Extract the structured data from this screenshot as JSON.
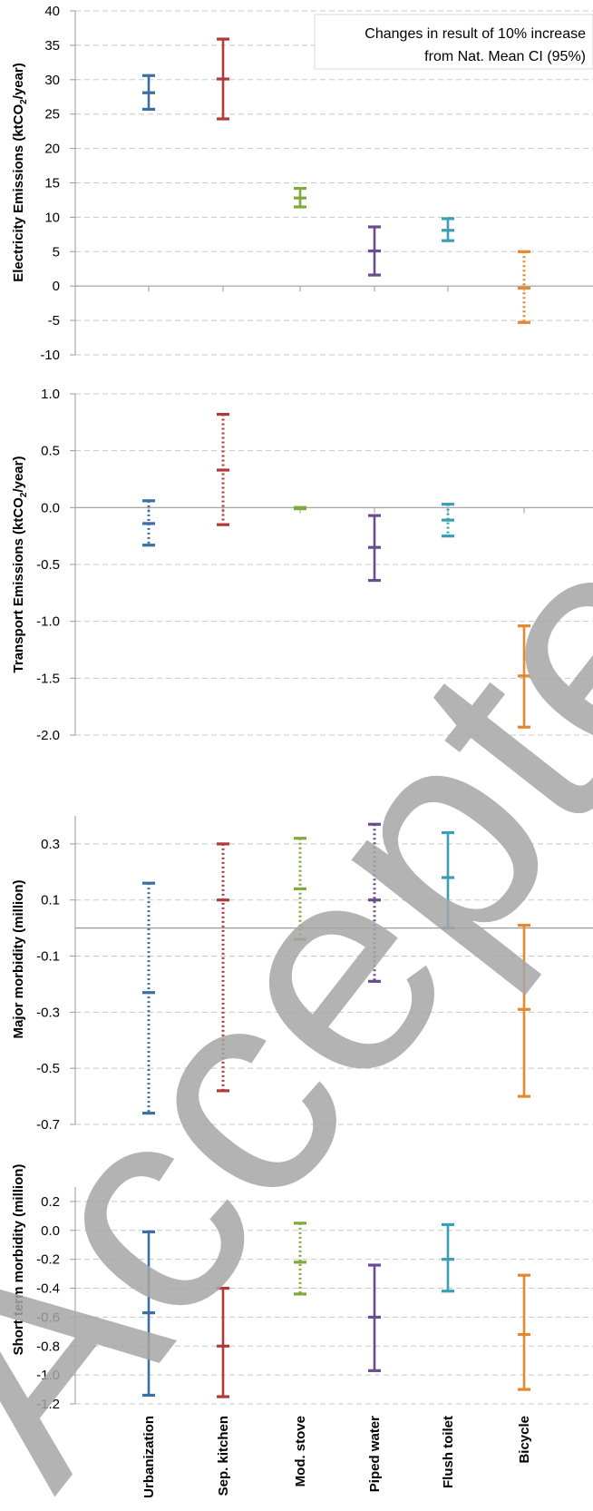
{
  "chart_data": [
    {
      "type": "errorbar",
      "ylabel_pre": "Electricity Emissions (ktCO",
      "ylabel_sub": "2",
      "ylabel_post": "/year)",
      "ylim": [
        -10,
        40
      ],
      "yticks": [
        -10,
        -5,
        0,
        5,
        10,
        15,
        20,
        25,
        30,
        35,
        40
      ],
      "ytick_labels": [
        "-10",
        "-5",
        "0",
        "5",
        "10",
        "15",
        "20",
        "25",
        "30",
        "35",
        "40"
      ],
      "legend": [
        "Changes in result of 10% increase",
        "from Nat. Mean CI (95%)"
      ],
      "points": [
        {
          "low": 25.7,
          "mid": 28.1,
          "high": 30.6,
          "style": "solid"
        },
        {
          "low": 24.3,
          "mid": 30.1,
          "high": 35.9,
          "style": "solid"
        },
        {
          "low": 11.5,
          "mid": 12.8,
          "high": 14.2,
          "style": "solid"
        },
        {
          "low": 1.6,
          "mid": 5.1,
          "high": 8.6,
          "style": "solid"
        },
        {
          "low": 6.6,
          "mid": 8.1,
          "high": 9.8,
          "style": "solid"
        },
        {
          "low": -5.3,
          "mid": -0.3,
          "high": 5.0,
          "style": "dotted"
        }
      ]
    },
    {
      "type": "errorbar",
      "ylabel_pre": "Transport Emissions (ktCO",
      "ylabel_sub": "2",
      "ylabel_post": "/year)",
      "ylim": [
        -2.0,
        1.0
      ],
      "yticks": [
        -2.0,
        -1.5,
        -1.0,
        -0.5,
        0.0,
        0.5,
        1.0
      ],
      "ytick_labels": [
        "-2.0",
        "-1.5",
        "-1.0",
        "-0.5",
        "0.0",
        "0.5",
        "1.0"
      ],
      "points": [
        {
          "low": -0.33,
          "mid": -0.14,
          "high": 0.06,
          "style": "dotted"
        },
        {
          "low": -0.15,
          "mid": 0.33,
          "high": 0.82,
          "style": "dotted"
        },
        {
          "low": -0.01,
          "mid": 0.0,
          "high": 0.0,
          "style": "solid"
        },
        {
          "low": -0.64,
          "mid": -0.35,
          "high": -0.07,
          "style": "solid"
        },
        {
          "low": -0.25,
          "mid": -0.11,
          "high": 0.03,
          "style": "dotted"
        },
        {
          "low": -1.93,
          "mid": -1.48,
          "high": -1.04,
          "style": "solid"
        }
      ]
    },
    {
      "type": "errorbar",
      "ylabel_pre": "Major morbidity (million)",
      "ylim": [
        -0.7,
        0.4
      ],
      "yticks": [
        -0.7,
        -0.5,
        -0.3,
        -0.1,
        0.1,
        0.3
      ],
      "ytick_labels": [
        "-0.7",
        "-0.5",
        "-0.3",
        "-0.1",
        "0.1",
        "0.3"
      ],
      "zero_line": 0.0,
      "points": [
        {
          "low": -0.66,
          "mid": -0.23,
          "high": 0.16,
          "style": "dotted"
        },
        {
          "low": -0.58,
          "mid": 0.1,
          "high": 0.3,
          "style": "dotted"
        },
        {
          "low": -0.04,
          "mid": 0.14,
          "high": 0.32,
          "style": "dotted"
        },
        {
          "low": -0.19,
          "mid": 0.1,
          "high": 0.37,
          "style": "dotted"
        },
        {
          "low": 0.0,
          "mid": 0.18,
          "high": 0.34,
          "style": "solid"
        },
        {
          "low": -0.6,
          "mid": -0.29,
          "high": 0.01,
          "style": "solid"
        }
      ]
    },
    {
      "type": "errorbar",
      "ylabel_pre": "Short term morbidity (million)",
      "ylim": [
        -1.2,
        0.3
      ],
      "yticks": [
        -1.2,
        -1.0,
        -0.8,
        -0.6,
        -0.4,
        -0.2,
        0.0,
        0.2
      ],
      "ytick_labels": [
        "-1.2",
        "-1.0",
        "-0.8",
        "-0.6",
        "-0.4",
        "-0.2",
        "0.0",
        "0.2"
      ],
      "points": [
        {
          "low": -1.14,
          "mid": -0.57,
          "high": -0.01,
          "style": "solid"
        },
        {
          "low": -1.15,
          "mid": -0.8,
          "high": -0.4,
          "style": "solid"
        },
        {
          "low": -0.44,
          "mid": -0.22,
          "high": 0.05,
          "style": "dotted"
        },
        {
          "low": -0.97,
          "mid": -0.6,
          "high": -0.24,
          "style": "solid"
        },
        {
          "low": -0.42,
          "mid": -0.2,
          "high": 0.04,
          "style": "solid"
        },
        {
          "low": -1.1,
          "mid": -0.72,
          "high": -0.31,
          "style": "solid"
        }
      ]
    }
  ],
  "categories": [
    "Urbanization",
    "Sep. kitchen",
    "Mod. stove",
    "Piped water",
    "Flush toilet",
    "Bicycle"
  ],
  "colors": [
    "#3a6ea5",
    "#b03a3a",
    "#7faa3c",
    "#6b4c8e",
    "#3a9fb5",
    "#e38a2e"
  ],
  "watermark": "Accepted Manuscript"
}
